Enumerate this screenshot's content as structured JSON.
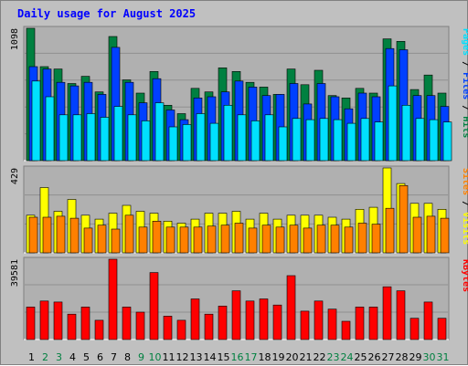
{
  "title": "Daily usage for August 2025",
  "colors": {
    "background": "#c0c0c0",
    "plot": "#b0b0b0",
    "grid": "#909090",
    "title": "#0000ff",
    "hits": "#008040",
    "files": "#0040ff",
    "pages": "#00e0ff",
    "visits": "#ffff00",
    "sites": "#ff8000",
    "kbytes": "#ff0000",
    "weekend": "#008040",
    "weekday": "#000000"
  },
  "chart_data": [
    {
      "type": "bar",
      "ylabel_parts": [
        {
          "text": "Pages",
          "color_key": "pages"
        },
        {
          "text": " / ",
          "color_key": "weekday"
        },
        {
          "text": "Files",
          "color_key": "files"
        },
        {
          "text": " / ",
          "color_key": "weekday"
        },
        {
          "text": "Hits",
          "color_key": "hits"
        }
      ],
      "ymax_label": "1098",
      "ylim": [
        0,
        1098
      ],
      "categories": [
        "1",
        "2",
        "3",
        "4",
        "5",
        "6",
        "7",
        "8",
        "9",
        "10",
        "11",
        "12",
        "13",
        "14",
        "15",
        "16",
        "17",
        "18",
        "19",
        "20",
        "21",
        "22",
        "23",
        "24",
        "25",
        "26",
        "27",
        "28",
        "29",
        "30",
        "31"
      ],
      "series": [
        {
          "name": "Hits",
          "color_key": "hits",
          "values": [
            1098,
            780,
            760,
            640,
            700,
            570,
            1030,
            670,
            560,
            740,
            460,
            390,
            600,
            570,
            770,
            740,
            650,
            610,
            550,
            760,
            630,
            750,
            540,
            520,
            600,
            560,
            1010,
            990,
            590,
            710,
            560
          ]
        },
        {
          "name": "Files",
          "color_key": "files",
          "values": [
            780,
            760,
            650,
            620,
            650,
            550,
            940,
            650,
            480,
            680,
            420,
            340,
            520,
            530,
            570,
            660,
            610,
            540,
            550,
            640,
            470,
            640,
            530,
            430,
            560,
            530,
            930,
            920,
            540,
            540,
            450
          ]
        },
        {
          "name": "Pages",
          "color_key": "pages",
          "values": [
            660,
            530,
            380,
            380,
            390,
            360,
            450,
            380,
            330,
            480,
            280,
            300,
            390,
            310,
            460,
            380,
            330,
            380,
            280,
            350,
            340,
            350,
            340,
            310,
            350,
            320,
            620,
            460,
            350,
            340,
            320
          ]
        }
      ]
    },
    {
      "type": "bar",
      "ylabel_parts": [
        {
          "text": "Sites",
          "color_key": "sites"
        },
        {
          "text": " / ",
          "color_key": "weekday"
        },
        {
          "text": "Visits",
          "color_key": "visits"
        }
      ],
      "ymax_label": "429",
      "ylim": [
        0,
        429
      ],
      "categories": [
        "1",
        "2",
        "3",
        "4",
        "5",
        "6",
        "7",
        "8",
        "9",
        "10",
        "11",
        "12",
        "13",
        "14",
        "15",
        "16",
        "17",
        "18",
        "19",
        "20",
        "21",
        "22",
        "23",
        "24",
        "25",
        "26",
        "27",
        "28",
        "29",
        "30",
        "31"
      ],
      "series": [
        {
          "name": "Visits",
          "color_key": "visits",
          "values": [
            190,
            330,
            210,
            270,
            190,
            170,
            200,
            240,
            210,
            200,
            160,
            150,
            170,
            200,
            200,
            210,
            170,
            200,
            170,
            190,
            190,
            190,
            180,
            170,
            220,
            230,
            429,
            350,
            250,
            250,
            220
          ]
        },
        {
          "name": "Sites",
          "color_key": "sites",
          "values": [
            180,
            180,
            185,
            175,
            125,
            140,
            120,
            190,
            130,
            160,
            130,
            130,
            130,
            135,
            140,
            150,
            125,
            140,
            130,
            140,
            125,
            140,
            140,
            130,
            150,
            145,
            225,
            340,
            180,
            185,
            175
          ]
        }
      ]
    },
    {
      "type": "bar",
      "ylabel_parts": [
        {
          "text": "KBytes",
          "color_key": "kbytes"
        }
      ],
      "ymax_label": "39581",
      "ylim": [
        0,
        39581
      ],
      "categories": [
        "1",
        "2",
        "3",
        "4",
        "5",
        "6",
        "7",
        "8",
        "9",
        "10",
        "11",
        "12",
        "13",
        "14",
        "15",
        "16",
        "17",
        "18",
        "19",
        "20",
        "21",
        "22",
        "23",
        "24",
        "25",
        "26",
        "27",
        "28",
        "29",
        "30",
        "31"
      ],
      "series": [
        {
          "name": "KBytes",
          "color_key": "kbytes",
          "values": [
            16000,
            19000,
            18500,
            12500,
            16000,
            9500,
            39581,
            16000,
            13500,
            33000,
            11500,
            9500,
            20000,
            12500,
            16500,
            24000,
            19000,
            20000,
            17000,
            31500,
            14000,
            19000,
            15000,
            9000,
            16000,
            16000,
            26000,
            24000,
            10500,
            18500,
            10500
          ]
        }
      ]
    }
  ],
  "x_labels": {
    "days": [
      "1",
      "2",
      "3",
      "4",
      "5",
      "6",
      "7",
      "8",
      "9",
      "10",
      "11",
      "12",
      "13",
      "14",
      "15",
      "16",
      "17",
      "18",
      "19",
      "20",
      "21",
      "22",
      "23",
      "24",
      "25",
      "26",
      "27",
      "28",
      "29",
      "30",
      "31"
    ],
    "weekend_days": [
      "2",
      "3",
      "9",
      "10",
      "16",
      "17",
      "23",
      "24",
      "30",
      "31"
    ]
  }
}
